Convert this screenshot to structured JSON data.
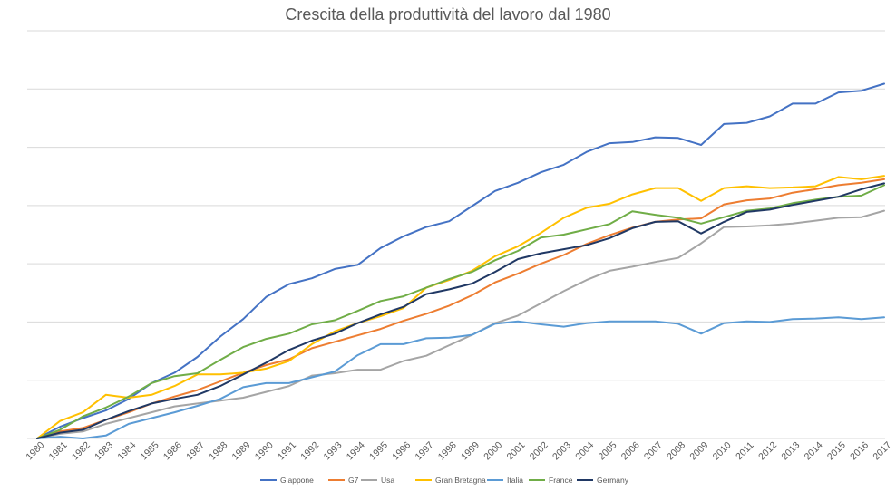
{
  "chart_data": {
    "type": "line",
    "title": "Crescita della produttività del lavoro dal 1980",
    "xlabel": "",
    "ylabel": "",
    "grid": true,
    "legend_position": "bottom",
    "ylim": [
      0,
      7
    ],
    "x": [
      "1980",
      "1981",
      "1982",
      "1983",
      "1984",
      "1985",
      "1986",
      "1987",
      "1988",
      "1989",
      "1990",
      "1991",
      "1992",
      "1993",
      "1994",
      "1995",
      "1996",
      "1997",
      "1998",
      "1999",
      "2000",
      "2001",
      "2002",
      "2003",
      "2004",
      "2005",
      "2006",
      "2007",
      "2008",
      "2009",
      "2010",
      "2011",
      "2012",
      "2013",
      "2014",
      "2015",
      "2016",
      "2017"
    ],
    "series": [
      {
        "name": "Giappone",
        "color": "#4472C4",
        "values": [
          0.0,
          0.2,
          0.35,
          0.48,
          0.68,
          0.95,
          1.13,
          1.4,
          1.75,
          2.05,
          2.43,
          2.65,
          2.75,
          2.91,
          2.98,
          3.27,
          3.47,
          3.63,
          3.73,
          3.99,
          4.25,
          4.39,
          4.57,
          4.7,
          4.92,
          5.07,
          5.09,
          5.17,
          5.16,
          5.04,
          5.4,
          5.42,
          5.53,
          5.75,
          5.75,
          5.94,
          5.97,
          6.09
        ]
      },
      {
        "name": "G7",
        "color": "#ED7D31",
        "values": [
          0.0,
          0.12,
          0.18,
          0.32,
          0.45,
          0.6,
          0.72,
          0.83,
          0.98,
          1.13,
          1.26,
          1.36,
          1.55,
          1.66,
          1.77,
          1.88,
          2.02,
          2.14,
          2.28,
          2.46,
          2.68,
          2.83,
          3.0,
          3.15,
          3.34,
          3.49,
          3.62,
          3.72,
          3.76,
          3.78,
          4.02,
          4.09,
          4.12,
          4.22,
          4.28,
          4.35,
          4.39,
          4.45
        ]
      },
      {
        "name": "Usa",
        "color": "#A5A5A5",
        "values": [
          0.0,
          0.08,
          0.12,
          0.25,
          0.35,
          0.45,
          0.55,
          0.6,
          0.65,
          0.7,
          0.8,
          0.9,
          1.08,
          1.12,
          1.18,
          1.18,
          1.33,
          1.42,
          1.6,
          1.78,
          1.98,
          2.11,
          2.32,
          2.53,
          2.72,
          2.88,
          2.95,
          3.03,
          3.1,
          3.35,
          3.63,
          3.64,
          3.66,
          3.69,
          3.74,
          3.79,
          3.8,
          3.91
        ]
      },
      {
        "name": "Gran Bretagna",
        "color": "#FFC000",
        "values": [
          0.0,
          0.3,
          0.45,
          0.75,
          0.7,
          0.75,
          0.9,
          1.1,
          1.1,
          1.13,
          1.2,
          1.33,
          1.62,
          1.84,
          1.98,
          2.1,
          2.24,
          2.59,
          2.72,
          2.88,
          3.13,
          3.3,
          3.53,
          3.79,
          3.96,
          4.03,
          4.19,
          4.3,
          4.3,
          4.08,
          4.3,
          4.33,
          4.3,
          4.31,
          4.33,
          4.49,
          4.45,
          4.51
        ]
      },
      {
        "name": "Italia",
        "color": "#5B9BD5",
        "values": [
          0.0,
          0.03,
          0.0,
          0.05,
          0.25,
          0.35,
          0.45,
          0.56,
          0.68,
          0.88,
          0.95,
          0.95,
          1.05,
          1.15,
          1.43,
          1.62,
          1.62,
          1.72,
          1.73,
          1.78,
          1.97,
          2.01,
          1.96,
          1.92,
          1.98,
          2.01,
          2.01,
          2.01,
          1.97,
          1.8,
          1.98,
          2.01,
          2.0,
          2.05,
          2.06,
          2.08,
          2.05,
          2.08
        ]
      },
      {
        "name": "France",
        "color": "#70AD47",
        "values": [
          0.0,
          0.15,
          0.38,
          0.53,
          0.72,
          0.95,
          1.07,
          1.12,
          1.35,
          1.57,
          1.71,
          1.8,
          1.96,
          2.03,
          2.19,
          2.36,
          2.44,
          2.59,
          2.74,
          2.86,
          3.06,
          3.22,
          3.45,
          3.5,
          3.59,
          3.68,
          3.9,
          3.84,
          3.79,
          3.69,
          3.8,
          3.91,
          3.95,
          4.04,
          4.1,
          4.15,
          4.17,
          4.35
        ]
      },
      {
        "name": "Germany",
        "color": "#203864",
        "values": [
          0.0,
          0.1,
          0.15,
          0.32,
          0.47,
          0.6,
          0.68,
          0.75,
          0.9,
          1.1,
          1.3,
          1.52,
          1.68,
          1.8,
          1.98,
          2.13,
          2.26,
          2.48,
          2.56,
          2.66,
          2.86,
          3.08,
          3.18,
          3.25,
          3.32,
          3.44,
          3.61,
          3.72,
          3.73,
          3.52,
          3.72,
          3.89,
          3.93,
          4.01,
          4.08,
          4.15,
          4.28,
          4.38
        ]
      }
    ]
  }
}
